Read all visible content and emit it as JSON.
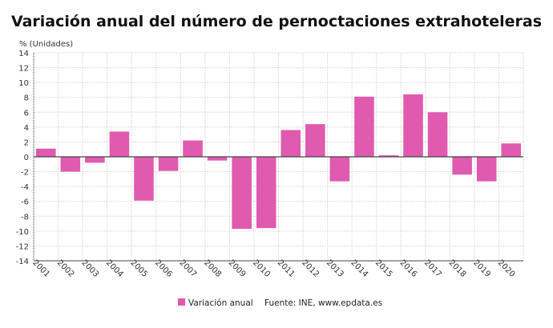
{
  "chart_data": {
    "type": "bar",
    "title": "Variación anual del número de pernoctaciones extrahoteleras",
    "ylabel": "% (Unidades)",
    "xlabel": "",
    "ylim": [
      -14,
      14
    ],
    "yticks": [
      14,
      12,
      10,
      8,
      6,
      4,
      2,
      0,
      -2,
      -4,
      -6,
      -8,
      -10,
      -12,
      -14
    ],
    "grid": true,
    "legend_position": "bottom",
    "categories": [
      "2001",
      "2002",
      "2003",
      "2004",
      "2005",
      "2006",
      "2007",
      "2008",
      "2009",
      "2010",
      "2011",
      "2012",
      "2013",
      "2014",
      "2015",
      "2016",
      "2017",
      "2018",
      "2019",
      "2020"
    ],
    "series": [
      {
        "name": "Variación anual",
        "color": "#e05aaf",
        "values": [
          1.1,
          -2.0,
          -0.8,
          3.4,
          -5.9,
          -1.9,
          2.2,
          -0.5,
          -9.7,
          -9.6,
          3.6,
          4.4,
          -3.3,
          8.1,
          0.2,
          8.4,
          6.0,
          -2.4,
          -3.3,
          1.8
        ]
      }
    ],
    "source": "Fuente: INE, www.epdata.es"
  }
}
